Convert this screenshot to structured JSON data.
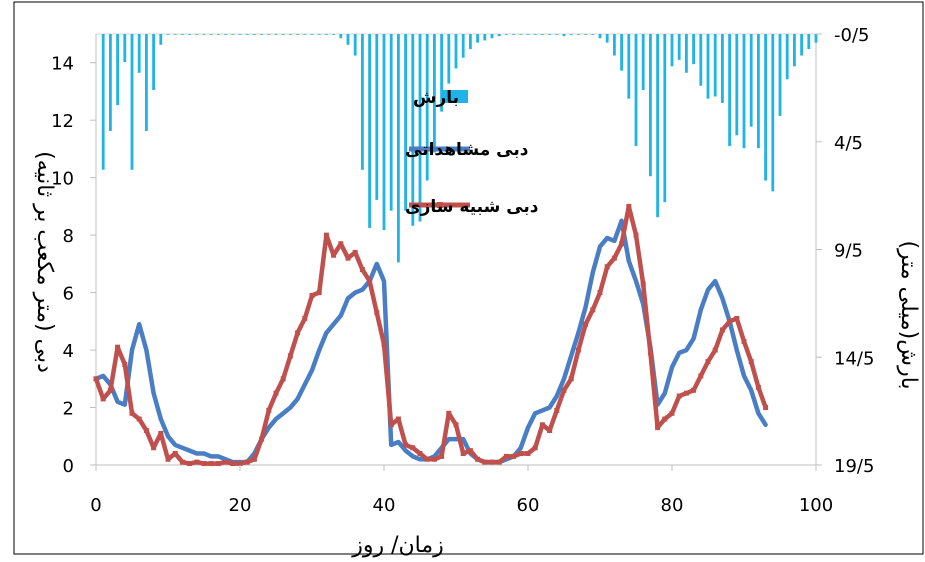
{
  "chart_data": {
    "type": "line",
    "xlabel": "زمان/ روز",
    "ylabel_left": "دبی (متر مکعب بر ثانیه)",
    "ylabel_right": "بارش(میلی متر)",
    "xlim": [
      0,
      100
    ],
    "ylim_left": [
      0,
      15
    ],
    "ylim_right": [
      -0.5,
      19.5
    ],
    "right_axis_inverted": true,
    "x_ticks": [
      "0",
      "20",
      "40",
      "60",
      "80",
      "100"
    ],
    "y_left_ticks": [
      "0",
      "2",
      "4",
      "6",
      "8",
      "10",
      "12",
      "14"
    ],
    "y_right_ticks": [
      "-0/5",
      "4/5",
      "9/5",
      "14/5",
      "19/5"
    ],
    "legend_position": "center",
    "colors": {
      "rain": "#1FB4E8",
      "observed": "#4A7EC4",
      "simulated": "#C0504D",
      "frame": "#000000"
    },
    "series": [
      {
        "name": "بارش",
        "kind": "bar",
        "axis": "right",
        "x": [
          1,
          2,
          3,
          4,
          5,
          6,
          7,
          8,
          9,
          10,
          11,
          12,
          13,
          14,
          15,
          16,
          17,
          18,
          19,
          20,
          21,
          22,
          23,
          24,
          25,
          26,
          27,
          28,
          29,
          30,
          31,
          32,
          33,
          34,
          35,
          36,
          37,
          38,
          39,
          40,
          41,
          42,
          43,
          44,
          45,
          46,
          47,
          48,
          49,
          50,
          51,
          52,
          53,
          54,
          55,
          56,
          57,
          58,
          59,
          60,
          61,
          62,
          63,
          64,
          65,
          66,
          67,
          68,
          69,
          70,
          71,
          72,
          73,
          74,
          75,
          76,
          77,
          78,
          79,
          80,
          81,
          82,
          83,
          84,
          85,
          86,
          87,
          88,
          89,
          90,
          91,
          92,
          93,
          94,
          95,
          96,
          97,
          98,
          99,
          100
        ],
        "values": [
          6.3,
          4.5,
          3.3,
          1.3,
          6.3,
          1.8,
          4.5,
          2.6,
          0.5,
          0,
          0,
          0,
          0,
          0,
          0,
          0,
          0,
          0,
          0,
          0,
          0,
          0,
          0,
          0,
          0,
          0,
          0,
          0,
          0,
          0,
          0,
          0,
          0,
          0.2,
          0.5,
          1.0,
          6.3,
          9.0,
          7.7,
          9.1,
          8.2,
          10.6,
          8.2,
          8.9,
          8.7,
          6.8,
          5.5,
          3.6,
          2.3,
          1.6,
          1.1,
          0.7,
          0.4,
          0.3,
          0.2,
          0.1,
          0,
          0,
          0,
          0,
          0,
          0,
          0,
          0,
          0.1,
          0,
          0,
          0,
          0,
          0.2,
          0.4,
          1.0,
          1.7,
          3.0,
          5.2,
          2.6,
          6.6,
          8.5,
          7.8,
          1.5,
          1.2,
          1.8,
          1.4,
          2.4,
          3.0,
          2.9,
          3.2,
          5.2,
          4.7,
          5.3,
          4.3,
          5.3,
          6.8,
          7.3,
          3.8,
          2.1,
          1.5,
          1.0,
          0.7,
          0.4
        ]
      },
      {
        "name": "دبی مشاهداتی",
        "kind": "line",
        "axis": "left",
        "x": [
          0,
          1,
          2,
          3,
          4,
          5,
          6,
          7,
          8,
          9,
          10,
          11,
          12,
          13,
          14,
          15,
          16,
          17,
          18,
          19,
          20,
          21,
          22,
          23,
          24,
          25,
          26,
          27,
          28,
          29,
          30,
          31,
          32,
          33,
          34,
          35,
          36,
          37,
          38,
          39,
          40,
          41,
          42,
          43,
          44,
          45,
          46,
          47,
          48,
          49,
          50,
          51,
          52,
          53,
          54,
          55,
          56,
          57,
          58,
          59,
          60,
          61,
          62,
          63,
          64,
          65,
          66,
          67,
          68,
          69,
          70,
          71,
          72,
          73,
          74,
          75,
          76,
          77,
          78,
          79,
          80,
          81,
          82,
          83,
          84,
          85,
          86,
          87,
          88,
          89,
          90,
          91,
          92,
          93
        ],
        "values": [
          3.0,
          3.1,
          2.8,
          2.2,
          2.1,
          4.0,
          4.9,
          4.0,
          2.5,
          1.6,
          1.0,
          0.7,
          0.6,
          0.5,
          0.4,
          0.4,
          0.3,
          0.3,
          0.2,
          0.1,
          0.1,
          0.1,
          0.4,
          0.9,
          1.3,
          1.6,
          1.8,
          2.0,
          2.3,
          2.8,
          3.3,
          4.0,
          4.6,
          4.9,
          5.2,
          5.8,
          6.0,
          6.1,
          6.4,
          7.0,
          6.4,
          0.7,
          0.8,
          0.5,
          0.3,
          0.2,
          0.2,
          0.3,
          0.6,
          0.9,
          0.9,
          0.9,
          0.4,
          0.2,
          0.1,
          0.1,
          0.1,
          0.2,
          0.3,
          0.6,
          1.3,
          1.8,
          1.9,
          2.0,
          2.4,
          3.0,
          3.8,
          4.6,
          5.5,
          6.7,
          7.6,
          7.9,
          7.8,
          8.5,
          7.1,
          6.4,
          5.6,
          4.1,
          2.1,
          2.5,
          3.4,
          3.9,
          4.0,
          4.4,
          5.4,
          6.1,
          6.4,
          5.8,
          5.0,
          4.0,
          3.1,
          2.6,
          1.8,
          1.4
        ]
      },
      {
        "name": "دبی شبیه سازی",
        "kind": "line",
        "axis": "left",
        "x": [
          0,
          1,
          2,
          3,
          4,
          5,
          6,
          7,
          8,
          9,
          10,
          11,
          12,
          13,
          14,
          15,
          16,
          17,
          18,
          19,
          20,
          21,
          22,
          23,
          24,
          25,
          26,
          27,
          28,
          29,
          30,
          31,
          32,
          33,
          34,
          35,
          36,
          37,
          38,
          39,
          40,
          41,
          42,
          43,
          44,
          45,
          46,
          47,
          48,
          49,
          50,
          51,
          52,
          53,
          54,
          55,
          56,
          57,
          58,
          59,
          60,
          61,
          62,
          63,
          64,
          65,
          66,
          67,
          68,
          69,
          70,
          71,
          72,
          73,
          74,
          75,
          76,
          77,
          78,
          79,
          80,
          81,
          82,
          83,
          84,
          85,
          86,
          87,
          88,
          89,
          90,
          91,
          92,
          93
        ],
        "values": [
          3.0,
          2.3,
          2.6,
          4.1,
          3.5,
          1.8,
          1.6,
          1.2,
          0.6,
          1.1,
          0.2,
          0.4,
          0.1,
          0.05,
          0.1,
          0.05,
          0.05,
          0.05,
          0.1,
          0.05,
          0.05,
          0.1,
          0.2,
          0.9,
          1.9,
          2.5,
          3.0,
          3.8,
          4.6,
          5.1,
          5.9,
          6.0,
          8.0,
          7.3,
          7.7,
          7.2,
          7.4,
          6.8,
          6.4,
          5.3,
          4.2,
          1.4,
          1.6,
          0.7,
          0.6,
          0.4,
          0.2,
          0.2,
          0.3,
          1.8,
          1.4,
          0.4,
          0.5,
          0.2,
          0.1,
          0.1,
          0.1,
          0.3,
          0.3,
          0.4,
          0.4,
          0.6,
          1.4,
          1.2,
          1.9,
          2.6,
          3.0,
          4.0,
          4.9,
          5.4,
          6.0,
          6.9,
          7.2,
          7.7,
          9.0,
          8.0,
          6.3,
          3.9,
          1.3,
          1.6,
          1.8,
          2.4,
          2.5,
          2.6,
          3.1,
          3.6,
          4.0,
          4.7,
          5.0,
          5.1,
          4.3,
          3.6,
          2.7,
          2.0
        ]
      }
    ]
  }
}
